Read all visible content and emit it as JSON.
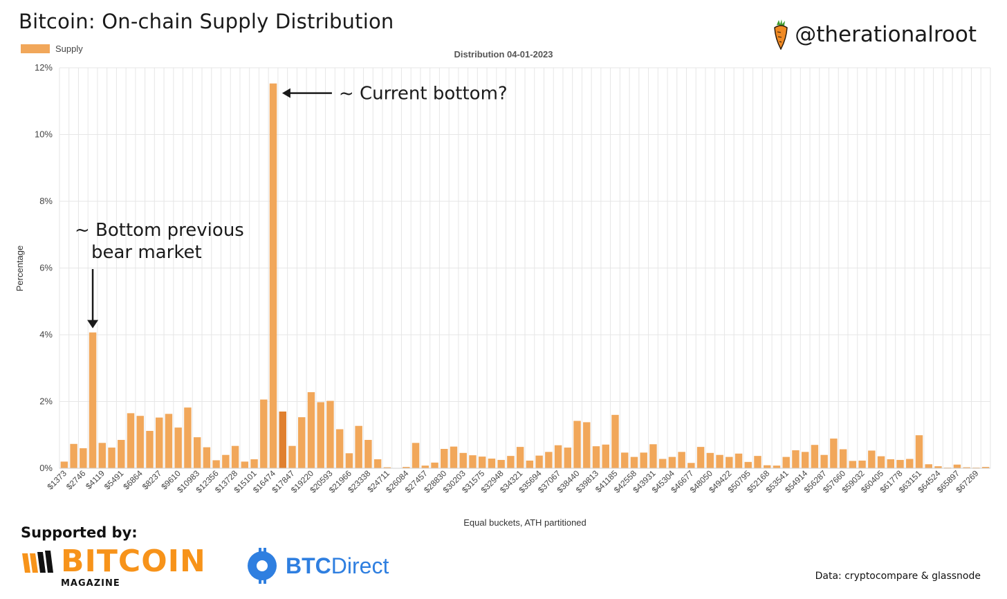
{
  "header": {
    "title": "Bitcoin: On-chain Supply Distribution",
    "handle": "@therationalroot",
    "handle_icon": "carrot-icon"
  },
  "chart_data": {
    "type": "bar",
    "title": "Distribution 04-01-2023",
    "xlabel": "Equal buckets, ATH partitioned",
    "ylabel": "Percentage",
    "ylim": [
      0,
      12
    ],
    "yticks": [
      "0%",
      "2%",
      "4%",
      "6%",
      "8%",
      "10%",
      "12%"
    ],
    "grid": true,
    "legend_position": "top-left",
    "series": [
      {
        "name": "Supply",
        "color": "#f1a75a",
        "highlight_color": "#e0802f",
        "highlight_index": 23,
        "values": [
          0.2,
          0.73,
          0.6,
          4.07,
          0.76,
          0.62,
          0.85,
          1.65,
          1.57,
          1.12,
          1.52,
          1.63,
          1.22,
          1.82,
          0.93,
          0.63,
          0.24,
          0.4,
          0.67,
          0.2,
          0.27,
          2.06,
          11.53,
          1.7,
          0.67,
          1.53,
          2.28,
          1.98,
          2.02,
          1.17,
          0.45,
          1.27,
          0.85,
          0.27,
          0.03,
          0.01,
          0.04,
          0.76,
          0.08,
          0.17,
          0.58,
          0.65,
          0.46,
          0.39,
          0.35,
          0.29,
          0.25,
          0.37,
          0.64,
          0.23,
          0.38,
          0.49,
          0.69,
          0.62,
          1.42,
          1.38,
          0.66,
          0.71,
          1.6,
          0.47,
          0.34,
          0.47,
          0.72,
          0.28,
          0.34,
          0.49,
          0.16,
          0.64,
          0.46,
          0.4,
          0.34,
          0.44,
          0.19,
          0.37,
          0.09,
          0.08,
          0.34,
          0.54,
          0.49,
          0.7,
          0.4,
          0.89,
          0.57,
          0.22,
          0.23,
          0.53,
          0.36,
          0.27,
          0.25,
          0.28,
          0.99,
          0.12,
          0.06,
          0.02,
          0.11,
          0.03,
          0.02,
          0.04
        ]
      }
    ],
    "categories": [
      "$1373",
      "",
      "$2746",
      "",
      "$4119",
      "",
      "$5491",
      "",
      "$6864",
      "",
      "$8237",
      "",
      "$9610",
      "",
      "$10983",
      "",
      "$12356",
      "",
      "$13728",
      "",
      "$15101",
      "",
      "$16474",
      "",
      "$17847",
      "",
      "$19220",
      "",
      "$20593",
      "",
      "$21966",
      "",
      "$23338",
      "",
      "$24711",
      "",
      "$26084",
      "",
      "$27457",
      "",
      "$28830",
      "",
      "$30203",
      "",
      "$31575",
      "",
      "$32948",
      "",
      "$34321",
      "",
      "$35694",
      "",
      "$37067",
      "",
      "$38440",
      "",
      "$39813",
      "",
      "$41185",
      "",
      "$42558",
      "",
      "$43931",
      "",
      "$45304",
      "",
      "$46677",
      "",
      "$48050",
      "",
      "$49422",
      "",
      "$50795",
      "",
      "$52168",
      "",
      "$53541",
      "",
      "$54914",
      "",
      "$56287",
      "",
      "$57660",
      "",
      "$59032",
      "",
      "$60405",
      "",
      "$61778",
      "",
      "$63151",
      "",
      "$64524",
      "",
      "$65897",
      "",
      "$67269",
      ""
    ],
    "annotations": [
      {
        "lines": [
          "~ Current bottom?"
        ],
        "target_index": 22
      },
      {
        "lines": [
          "~ Bottom previous",
          "bear market"
        ],
        "target_index": 3
      }
    ]
  },
  "footer": {
    "supported_by": "Supported by:",
    "sponsor1_word": "BITCOIN",
    "sponsor1_sub": "MAGAZINE",
    "sponsor2_bold": "BTC",
    "sponsor2_rest": "Direct",
    "source": "Data: cryptocompare & glassnode"
  }
}
